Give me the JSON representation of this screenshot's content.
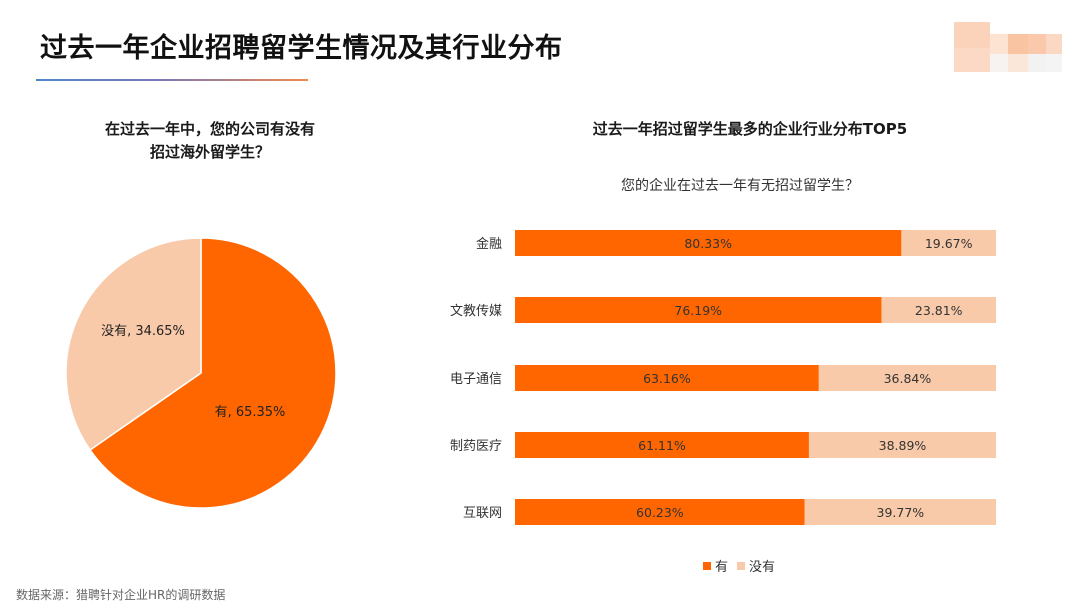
{
  "title": "过去一年企业招聘留学生情况及其行业分布",
  "source_note": "数据来源：猎聘针对企业HR的调研数据",
  "colors": {
    "yes": "#ff6600",
    "no": "#f8caa9",
    "accent_gradient": [
      "#4f86c6",
      "#f08a4b"
    ]
  },
  "chart_data": [
    {
      "type": "pie",
      "title": "在过去一年中，您的公司有没有招过海外留学生？",
      "title_lines": [
        "在过去一年中，您的公司有没有",
        "招过海外留学生？"
      ],
      "slices": [
        {
          "label": "有",
          "value": 65.35,
          "text": "有, 65.35%",
          "color": "#ff6600"
        },
        {
          "label": "没有",
          "value": 34.65,
          "text": "没有, 34.65%",
          "color": "#f8caa9"
        }
      ]
    },
    {
      "type": "bar",
      "orientation": "horizontal",
      "stacked": true,
      "title": "过去一年招过留学生最多的企业行业分布TOP5",
      "subtitle": "您的企业在过去一年有无招过留学生？",
      "categories": [
        "金融",
        "文教传媒",
        "电子通信",
        "制药医疗",
        "互联网"
      ],
      "series": [
        {
          "name": "有",
          "color": "#ff6600",
          "values": [
            80.33,
            76.19,
            63.16,
            61.11,
            60.23
          ],
          "labels": [
            "80.33%",
            "76.19%",
            "63.16%",
            "61.11%",
            "60.23%"
          ]
        },
        {
          "name": "没有",
          "color": "#f8caa9",
          "values": [
            19.67,
            23.81,
            36.84,
            38.89,
            39.77
          ],
          "labels": [
            "19.67%",
            "23.81%",
            "36.84%",
            "38.89%",
            "39.77%"
          ]
        }
      ],
      "xlim": [
        0,
        100
      ],
      "legend_position": "bottom-center",
      "grid": false
    }
  ]
}
